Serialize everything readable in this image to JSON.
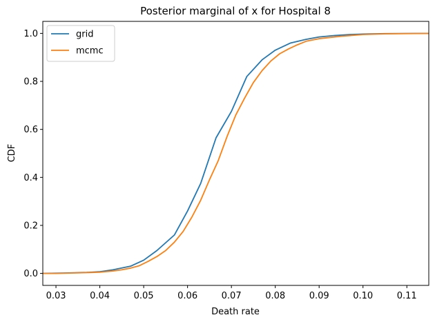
{
  "chart_data": {
    "type": "line",
    "title": "Posterior marginal of x for Hospital 8",
    "xlabel": "Death rate",
    "ylabel": "CDF",
    "xlim": [
      0.027,
      0.115
    ],
    "ylim": [
      -0.05,
      1.05
    ],
    "xticks": [
      0.03,
      0.04,
      0.05,
      0.06,
      0.07,
      0.08,
      0.09,
      0.1,
      0.11
    ],
    "xtick_labels": [
      "0.03",
      "0.04",
      "0.05",
      "0.06",
      "0.07",
      "0.08",
      "0.09",
      "0.10",
      "0.11"
    ],
    "yticks": [
      0.0,
      0.2,
      0.4,
      0.6,
      0.8,
      1.0
    ],
    "ytick_labels": [
      "0.0",
      "0.2",
      "0.4",
      "0.6",
      "0.8",
      "1.0"
    ],
    "grid": false,
    "legend": "upper-left",
    "series": [
      {
        "name": "grid",
        "color": "#1f77b4",
        "x": [
          0.027,
          0.03,
          0.033,
          0.037,
          0.04,
          0.043,
          0.047,
          0.05,
          0.053,
          0.057,
          0.06,
          0.063,
          0.0665,
          0.07,
          0.0735,
          0.077,
          0.08,
          0.0835,
          0.087,
          0.09,
          0.0935,
          0.097,
          0.1,
          0.105,
          0.115
        ],
        "y": [
          0.0,
          0.001,
          0.002,
          0.004,
          0.007,
          0.015,
          0.03,
          0.055,
          0.095,
          0.16,
          0.26,
          0.375,
          0.565,
          0.675,
          0.82,
          0.89,
          0.93,
          0.96,
          0.975,
          0.985,
          0.991,
          0.995,
          0.997,
          0.999,
          1.0
        ]
      },
      {
        "name": "mcmc",
        "color": "#ff7f0e",
        "x": [
          0.027,
          0.03,
          0.035,
          0.04,
          0.043,
          0.045,
          0.047,
          0.049,
          0.051,
          0.053,
          0.055,
          0.057,
          0.059,
          0.061,
          0.063,
          0.065,
          0.067,
          0.069,
          0.071,
          0.073,
          0.075,
          0.077,
          0.079,
          0.081,
          0.083,
          0.085,
          0.087,
          0.09,
          0.095,
          0.1,
          0.105,
          0.115
        ],
        "y": [
          0.0,
          0.0,
          0.002,
          0.005,
          0.01,
          0.015,
          0.022,
          0.032,
          0.05,
          0.07,
          0.095,
          0.13,
          0.175,
          0.235,
          0.305,
          0.39,
          0.47,
          0.57,
          0.66,
          0.73,
          0.795,
          0.845,
          0.885,
          0.915,
          0.935,
          0.952,
          0.967,
          0.978,
          0.988,
          0.995,
          0.998,
          1.0
        ]
      }
    ]
  }
}
